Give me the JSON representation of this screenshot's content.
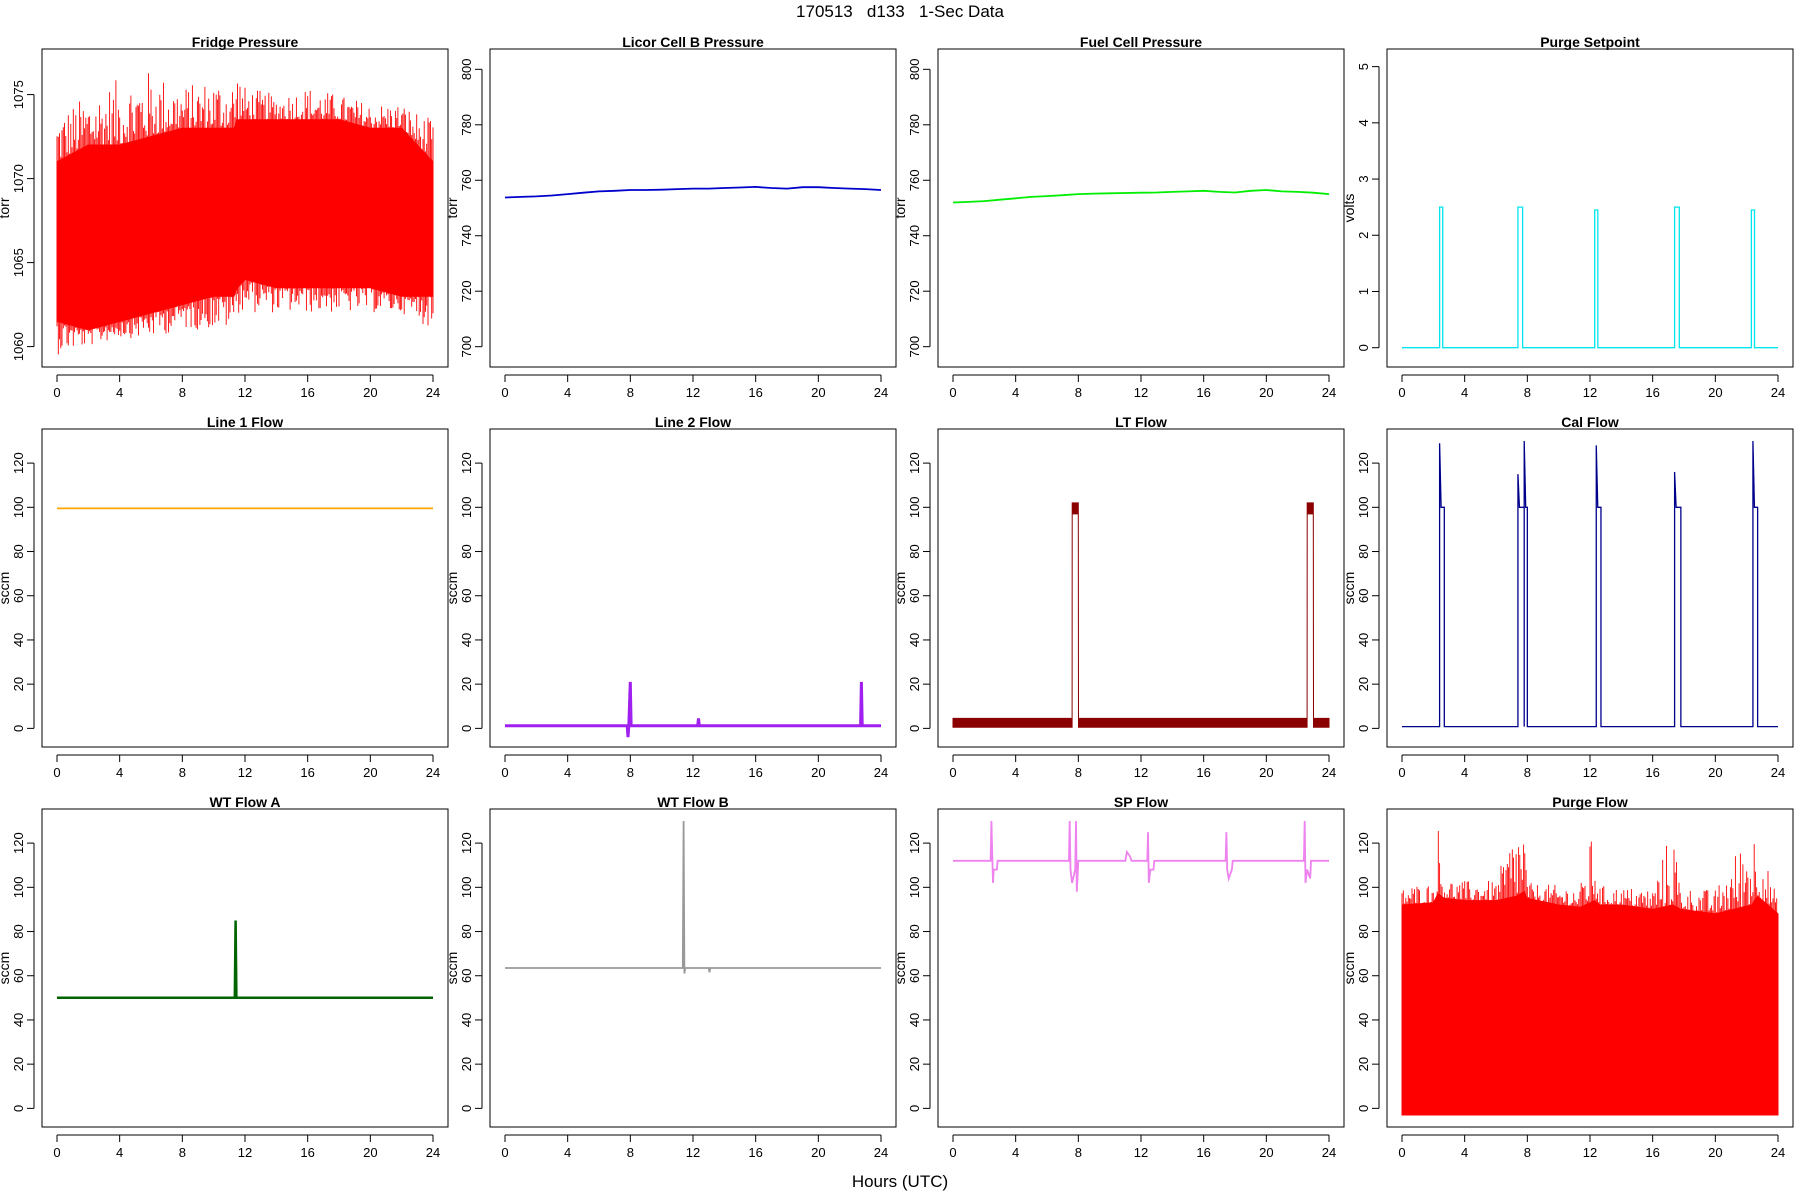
{
  "figure": {
    "title": "170513   d133   1-Sec Data",
    "xlabel": "Hours (UTC)"
  },
  "chart_data": [
    {
      "type": "line",
      "title": "Fridge Pressure",
      "ylabel": "torr",
      "color": "#ff0000",
      "xlim": [
        0,
        24
      ],
      "xticks": [
        0,
        4,
        8,
        12,
        16,
        20,
        24
      ],
      "ylim": [
        1059.5,
        1077
      ],
      "yticks": [
        1060,
        1065,
        1070,
        1075
      ],
      "style": "band",
      "series": [
        {
          "x": [
            0,
            2,
            4,
            6,
            8,
            10,
            11.3,
            11.5,
            12,
            14,
            16,
            18,
            20,
            22,
            24
          ],
          "low": [
            1061.5,
            1061,
            1061.5,
            1062,
            1062.5,
            1063,
            1063,
            1063.5,
            1064,
            1063.5,
            1063.5,
            1063.5,
            1063.5,
            1063,
            1063
          ],
          "high": [
            1071,
            1072,
            1072,
            1072.5,
            1073,
            1073,
            1073,
            1073.5,
            1073.5,
            1073.5,
            1073.5,
            1073.5,
            1073,
            1073,
            1071
          ],
          "spike_max": [
            1074,
            1075,
            1076,
            1076.5,
            1075.5,
            1076,
            1076,
            1076.8,
            1075.5,
            1075,
            1075.5,
            1075,
            1074.5,
            1074.5,
            1073.5
          ],
          "spike_min": [
            1059.5,
            1060,
            1060.5,
            1060.5,
            1061,
            1061,
            1061,
            1062,
            1062,
            1062,
            1062,
            1062,
            1062,
            1062,
            1061
          ]
        }
      ]
    },
    {
      "type": "line",
      "title": "Licor Cell B Pressure",
      "ylabel": "torr",
      "color": "#0000cc",
      "xlim": [
        0,
        24
      ],
      "xticks": [
        0,
        4,
        8,
        12,
        16,
        20,
        24
      ],
      "ylim": [
        697,
        803
      ],
      "yticks": [
        700,
        720,
        740,
        760,
        780,
        800
      ],
      "style": "line",
      "series": [
        {
          "x": [
            0,
            1,
            2,
            3,
            4,
            5,
            6,
            7,
            8,
            9,
            10,
            11,
            12,
            13,
            14,
            15,
            16,
            17,
            18,
            19,
            20,
            21,
            22,
            23,
            24
          ],
          "y": [
            753.8,
            754,
            754.2,
            754.5,
            755,
            755.5,
            756,
            756.2,
            756.5,
            756.5,
            756.6,
            756.8,
            757,
            757,
            757.2,
            757.4,
            757.6,
            757.2,
            757,
            757.5,
            757.5,
            757.2,
            757,
            756.8,
            756.5
          ]
        }
      ]
    },
    {
      "type": "line",
      "title": "Fuel Cell Pressure",
      "ylabel": "torr",
      "color": "#00ee00",
      "xlim": [
        0,
        24
      ],
      "xticks": [
        0,
        4,
        8,
        12,
        16,
        20,
        24
      ],
      "ylim": [
        697,
        803
      ],
      "yticks": [
        700,
        720,
        740,
        760,
        780,
        800
      ],
      "style": "line",
      "series": [
        {
          "x": [
            0,
            1,
            2,
            3,
            4,
            5,
            6,
            7,
            8,
            9,
            10,
            11,
            12,
            13,
            14,
            15,
            16,
            17,
            18,
            19,
            20,
            21,
            22,
            23,
            24
          ],
          "y": [
            752,
            752.2,
            752.5,
            753,
            753.5,
            754,
            754.3,
            754.6,
            755,
            755.2,
            755.3,
            755.4,
            755.5,
            755.6,
            755.8,
            756,
            756.2,
            755.8,
            755.6,
            756.2,
            756.5,
            756,
            755.8,
            755.5,
            755
          ]
        }
      ]
    },
    {
      "type": "line",
      "title": "Purge Setpoint",
      "ylabel": "volts",
      "color": "#00e5ee",
      "xlim": [
        0,
        24
      ],
      "xticks": [
        0,
        4,
        8,
        12,
        16,
        20,
        24
      ],
      "ylim": [
        -0.13,
        5.1
      ],
      "yticks": [
        0,
        1,
        2,
        3,
        4,
        5
      ],
      "style": "pulses",
      "baseline": 0,
      "pulses": [
        {
          "x0": 2.4,
          "x1": 2.6,
          "h": 2.5
        },
        {
          "x0": 7.4,
          "x1": 7.7,
          "h": 2.5
        },
        {
          "x0": 12.3,
          "x1": 12.5,
          "h": 2.45
        },
        {
          "x0": 17.4,
          "x1": 17.7,
          "h": 2.5
        },
        {
          "x0": 22.3,
          "x1": 22.5,
          "h": 2.45
        }
      ]
    },
    {
      "type": "line",
      "title": "Line 1 Flow",
      "ylabel": "sccm",
      "color": "#ffa500",
      "xlim": [
        0,
        24
      ],
      "xticks": [
        0,
        4,
        8,
        12,
        16,
        20,
        24
      ],
      "ylim": [
        -3,
        130
      ],
      "yticks": [
        0,
        20,
        40,
        60,
        80,
        100,
        120
      ],
      "style": "line",
      "series": [
        {
          "x": [
            0,
            24
          ],
          "y": [
            99.5,
            99.5
          ]
        }
      ]
    },
    {
      "type": "line",
      "title": "Line 2 Flow",
      "ylabel": "sccm",
      "color": "#a020f0",
      "xlim": [
        0,
        24
      ],
      "xticks": [
        0,
        4,
        8,
        12,
        16,
        20,
        24
      ],
      "ylim": [
        -3,
        130
      ],
      "yticks": [
        0,
        20,
        40,
        60,
        80,
        100,
        120
      ],
      "style": "line",
      "thickness": 3,
      "series": [
        {
          "x": [
            0,
            7.8,
            7.85,
            7.9,
            8.0,
            8.05,
            12.3,
            12.35,
            12.4,
            22.7,
            22.75,
            22.8,
            24
          ],
          "y": [
            1.2,
            1.2,
            -4,
            1.2,
            21,
            1.2,
            1.2,
            4.5,
            1.2,
            1.2,
            21,
            1.2,
            1.2
          ]
        }
      ]
    },
    {
      "type": "line",
      "title": "LT Flow",
      "ylabel": "sccm",
      "color": "#8b0000",
      "xlim": [
        0,
        24
      ],
      "xticks": [
        0,
        4,
        8,
        12,
        16,
        20,
        24
      ],
      "ylim": [
        -3,
        130
      ],
      "yticks": [
        0,
        20,
        40,
        60,
        80,
        100,
        120
      ],
      "style": "band",
      "series": [
        {
          "x": [
            0,
            7.6,
            7.61,
            8.0,
            8.01,
            22.6,
            22.61,
            23.0,
            23.01,
            24
          ],
          "low": [
            0.5,
            0.5,
            97,
            97,
            0.5,
            0.5,
            97,
            97,
            0.5,
            0.5
          ],
          "high": [
            4.5,
            4.5,
            102,
            102,
            4.5,
            4.5,
            102,
            102,
            4.5,
            4.5
          ],
          "spike_max": [
            4.5,
            4.5,
            102,
            102,
            4.5,
            4.5,
            102,
            102,
            4.5,
            4.5
          ],
          "spike_min": [
            0.5,
            0.5,
            97,
            97,
            0.5,
            0.5,
            97,
            97,
            0.5,
            0.5
          ]
        }
      ]
    },
    {
      "type": "line",
      "title": "Cal Flow",
      "ylabel": "sccm",
      "color": "#00008b",
      "xlim": [
        0,
        24
      ],
      "xticks": [
        0,
        4,
        8,
        12,
        16,
        20,
        24
      ],
      "ylim": [
        -3,
        130
      ],
      "yticks": [
        0,
        20,
        40,
        60,
        80,
        100,
        120
      ],
      "style": "pulses",
      "baseline": 0.8,
      "pulses": [
        {
          "x0": 2.4,
          "x1": 2.7,
          "h": 100,
          "peak": 129
        },
        {
          "x0": 7.4,
          "x1": 7.8,
          "h": 100,
          "peak": 115
        },
        {
          "x0": 7.8,
          "x1": 8.0,
          "h": 100,
          "peak": 130
        },
        {
          "x0": 12.4,
          "x1": 12.7,
          "h": 100,
          "peak": 128
        },
        {
          "x0": 17.4,
          "x1": 17.8,
          "h": 100,
          "peak": 116
        },
        {
          "x0": 22.4,
          "x1": 22.7,
          "h": 100,
          "peak": 130
        }
      ]
    },
    {
      "type": "line",
      "title": "WT Flow A",
      "ylabel": "sccm",
      "color": "#006400",
      "xlim": [
        0,
        24
      ],
      "xticks": [
        0,
        4,
        8,
        12,
        16,
        20,
        24
      ],
      "ylim": [
        -3,
        130
      ],
      "yticks": [
        0,
        20,
        40,
        60,
        80,
        100,
        120
      ],
      "style": "line",
      "thickness": 2.5,
      "series": [
        {
          "x": [
            0,
            11.35,
            11.4,
            11.45,
            11.5,
            24
          ],
          "y": [
            50,
            50,
            85,
            50,
            50,
            50
          ]
        }
      ]
    },
    {
      "type": "line",
      "title": "WT Flow B",
      "ylabel": "sccm",
      "color": "#999999",
      "xlim": [
        0,
        24
      ],
      "xticks": [
        0,
        4,
        8,
        12,
        16,
        20,
        24
      ],
      "ylim": [
        -3,
        130
      ],
      "yticks": [
        0,
        20,
        40,
        60,
        80,
        100,
        120
      ],
      "style": "line",
      "series": [
        {
          "x": [
            0,
            11.35,
            11.4,
            11.45,
            11.5,
            13,
            13.05,
            13.1,
            24
          ],
          "y": [
            63.5,
            63.5,
            130,
            61,
            63.5,
            63.5,
            61.5,
            63.5,
            63.5
          ]
        }
      ]
    },
    {
      "type": "line",
      "title": "SP Flow",
      "ylabel": "sccm",
      "color": "#ee82ee",
      "xlim": [
        0,
        24
      ],
      "xticks": [
        0,
        4,
        8,
        12,
        16,
        20,
        24
      ],
      "ylim": [
        -3,
        130
      ],
      "yticks": [
        0,
        20,
        40,
        60,
        80,
        100,
        120
      ],
      "style": "line",
      "series": [
        {
          "x": [
            0,
            2.4,
            2.45,
            2.55,
            2.6,
            2.8,
            2.85,
            7.4,
            7.45,
            7.5,
            7.6,
            7.8,
            7.85,
            7.9,
            8.0,
            11.0,
            11.1,
            11.3,
            11.4,
            12.4,
            12.45,
            12.5,
            12.6,
            12.8,
            12.85,
            17.4,
            17.45,
            17.5,
            17.6,
            17.8,
            17.85,
            22.4,
            22.45,
            22.5,
            22.6,
            22.8,
            22.85,
            24
          ],
          "y": [
            112,
            112,
            130,
            102,
            108,
            108,
            112,
            112,
            130,
            108,
            102,
            108,
            130,
            98,
            112,
            112,
            116,
            114,
            112,
            112,
            125,
            102,
            108,
            108,
            112,
            112,
            125,
            108,
            104,
            108,
            112,
            112,
            130,
            102,
            108,
            104,
            112,
            112
          ]
        }
      ]
    },
    {
      "type": "line",
      "title": "Purge Flow",
      "ylabel": "sccm",
      "color": "#ff0000",
      "xlim": [
        0,
        24
      ],
      "xticks": [
        0,
        4,
        8,
        12,
        16,
        20,
        24
      ],
      "ylim": [
        -3,
        130
      ],
      "yticks": [
        0,
        20,
        40,
        60,
        80,
        100,
        120
      ],
      "style": "band",
      "series": [
        {
          "x": [
            0,
            2,
            2.3,
            2.7,
            4,
            6,
            7.3,
            7.8,
            8,
            10,
            11.4,
            12.3,
            12.6,
            14,
            16,
            17.3,
            17.8,
            20,
            22.3,
            22.7,
            24
          ],
          "low": [
            -3,
            -3,
            -3,
            -3,
            -3,
            -3,
            -3,
            -3,
            -3,
            -3,
            -3,
            -3,
            -3,
            -3,
            -3,
            -3,
            -3,
            -3,
            -3,
            -3,
            -3
          ],
          "high": [
            92,
            93,
            97,
            95,
            94,
            94,
            96,
            98,
            95,
            92,
            91,
            94,
            92,
            92,
            90,
            92,
            90,
            88,
            92,
            96,
            88
          ],
          "spike_max": [
            101,
            102,
            130,
            104,
            103,
            103,
            130,
            130,
            102,
            101,
            101,
            130,
            101,
            100,
            100,
            130,
            100,
            99,
            130,
            125,
            94
          ],
          "spike_min": [
            -3,
            -3,
            -3,
            -3,
            -3,
            -3,
            -3,
            -3,
            -3,
            -3,
            -3,
            -3,
            -3,
            -3,
            -3,
            -3,
            -3,
            -3,
            -3,
            -3,
            -3
          ]
        }
      ]
    }
  ]
}
